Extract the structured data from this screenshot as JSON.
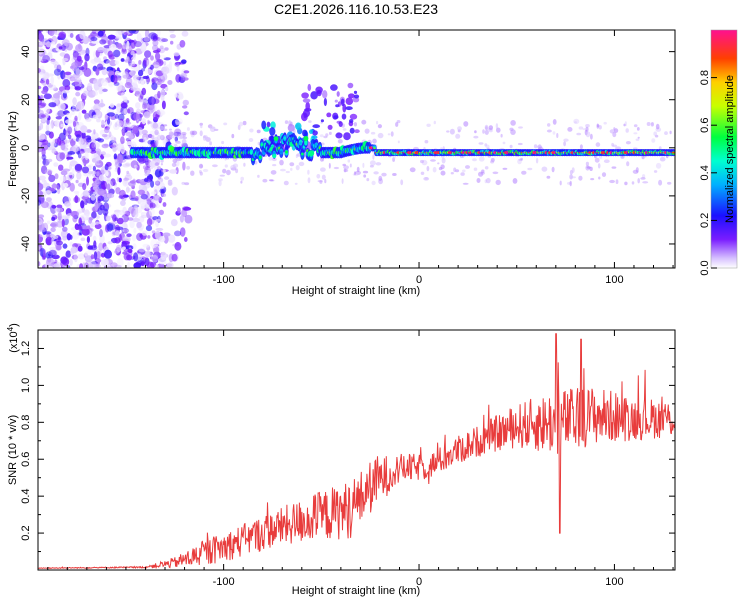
{
  "title": "C2E1.2026.116.10.53.E23",
  "chart_data": [
    {
      "type": "heatmap",
      "title": "C2E1.2026.116.10.53.E23",
      "xlabel": "Height of straight line (km)",
      "ylabel": "Frequency (Hz)",
      "xlim": [
        -195,
        131
      ],
      "ylim": [
        -50,
        49
      ],
      "xticks": [
        -100,
        0,
        100
      ],
      "xtick_labels": [
        "-100",
        "0",
        "100"
      ],
      "yticks": [
        -40,
        -20,
        0,
        20,
        40
      ],
      "ytick_labels": [
        "-40",
        "-20",
        "0",
        "20",
        "40"
      ],
      "colorbar": {
        "label": "Normalized spectral amplitude",
        "range": [
          0,
          1
        ],
        "ticks": [
          0,
          0.2,
          0.4,
          0.6,
          0.8
        ],
        "tick_labels": [
          "0.0",
          "0.2",
          "0.4",
          "0.6",
          "0.8"
        ]
      },
      "features": {
        "noise_region_x": [
          -195,
          -130
        ],
        "signal_start_x": -147,
        "track_center_y": -2,
        "track_width": 6,
        "bumps": [
          {
            "x": -67,
            "y": 4,
            "note": "scatter around -80 to -50 km"
          },
          {
            "x": -45,
            "y": 15,
            "note": "weak excursion near -45 to -30 km"
          }
        ],
        "strong_segment_x": [
          -25,
          131
        ]
      }
    },
    {
      "type": "line",
      "xlabel": "Height of straight line (km)",
      "ylabel": "SNR (10 * v/v)",
      "y_multiplier_label": "(x10",
      "y_multiplier_exp": "4",
      "y_multiplier_close": ")",
      "xlim": [
        -195,
        131
      ],
      "ylim": [
        0,
        1.3
      ],
      "xticks": [
        -100,
        0,
        100
      ],
      "xtick_labels": [
        "-100",
        "0",
        "100"
      ],
      "yticks": [
        0.2,
        0.4,
        0.6,
        0.8,
        1.0,
        1.2
      ],
      "ytick_labels": [
        "0.2",
        "0.4",
        "0.6",
        "0.8",
        "1.0",
        "1.2"
      ],
      "series": [
        {
          "name": "SNR",
          "color": "#e83c3c",
          "trend_x": [
            -195,
            -140,
            -125,
            -110,
            -90,
            -75,
            -55,
            -35,
            -22,
            -10,
            5,
            20,
            35,
            50,
            70,
            90,
            110,
            131
          ],
          "trend_y": [
            0.01,
            0.015,
            0.04,
            0.09,
            0.16,
            0.22,
            0.28,
            0.33,
            0.48,
            0.55,
            0.56,
            0.65,
            0.72,
            0.78,
            0.8,
            0.84,
            0.82,
            0.82
          ],
          "spread_y": [
            0.002,
            0.004,
            0.03,
            0.07,
            0.09,
            0.1,
            0.13,
            0.16,
            0.14,
            0.08,
            0.07,
            0.08,
            0.09,
            0.12,
            0.18,
            0.16,
            0.12,
            0.1
          ],
          "peaks": [
            {
              "x": 70,
              "y": 1.28
            },
            {
              "x": 83,
              "y": 1.25
            },
            {
              "x": 72,
              "y": 0.2
            }
          ]
        }
      ]
    }
  ]
}
